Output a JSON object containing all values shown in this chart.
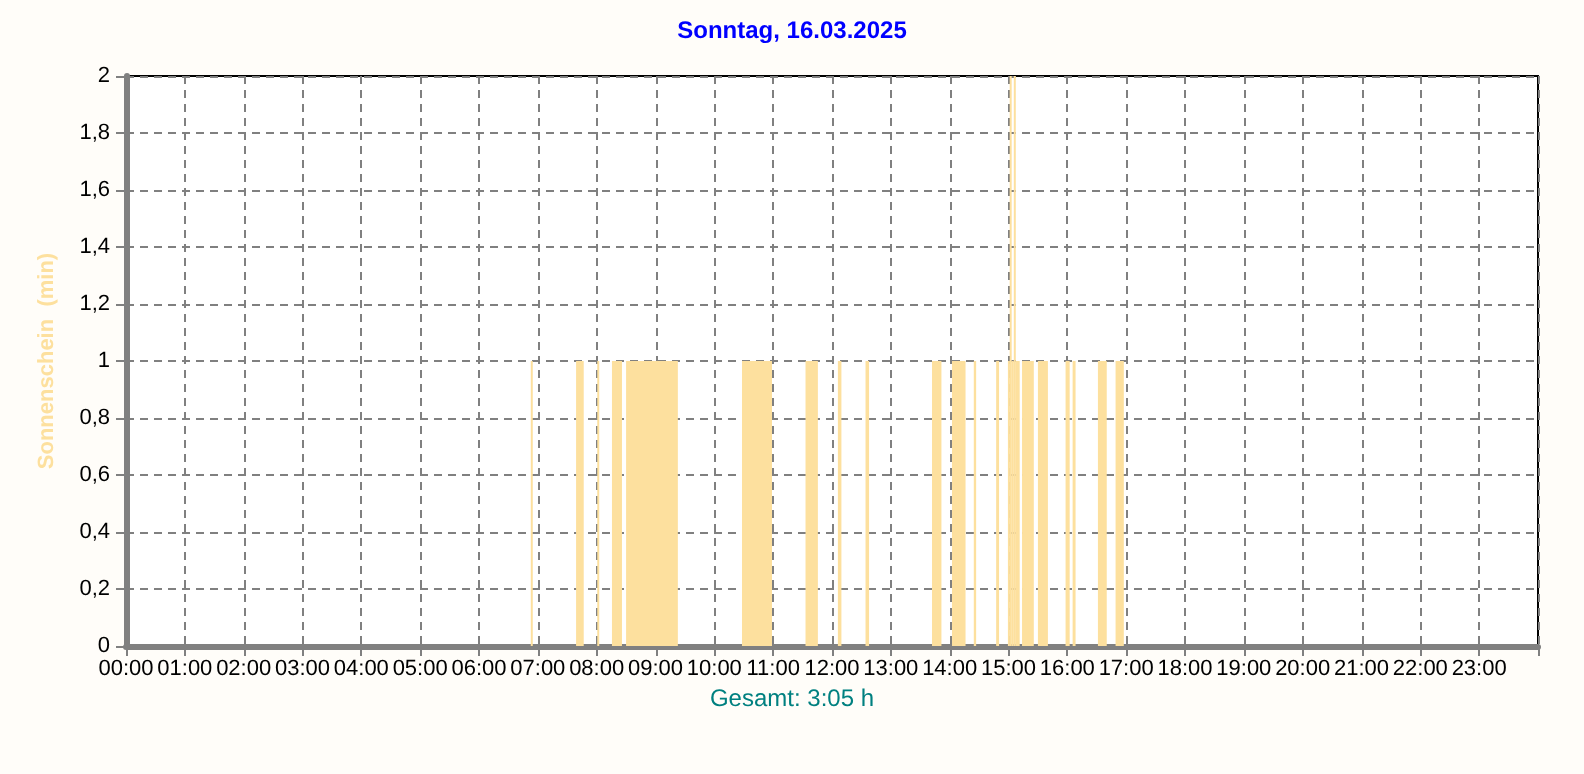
{
  "chart_data": {
    "type": "histogram",
    "title": "Sonntag, 16.03.2025",
    "ylabel": "Sonnenschein  (min)",
    "annotations": [
      "Gesamt: 3:05 h"
    ],
    "color": "#fde09e",
    "bins": [
      6.88,
      6.91,
      7.65,
      7.78,
      8.01,
      8.04,
      8.26,
      8.43,
      8.5,
      9.38,
      10.47,
      10.98,
      11.55,
      11.76,
      12.1,
      12.16,
      12.57,
      12.63,
      13.7,
      13.86,
      14.04,
      14.27,
      14.41,
      14.45,
      14.79,
      14.84,
      14.99,
      15.02,
      15.05,
      15.09,
      15.12,
      15.19,
      15.23,
      15.43,
      15.5,
      15.67,
      15.97,
      16.04,
      16.09,
      16.14,
      16.52,
      16.67,
      16.82,
      16.96
    ],
    "values": [
      1,
      0,
      1,
      0,
      1,
      0,
      1,
      0,
      1,
      0,
      1,
      0,
      1,
      0,
      1,
      0,
      1,
      0,
      1,
      0,
      1,
      0,
      1,
      0,
      1,
      0,
      1,
      2,
      1,
      2,
      1,
      0,
      1,
      0,
      1,
      0,
      1,
      0,
      1,
      0,
      1,
      0,
      1
    ],
    "xlim": [
      0,
      24
    ],
    "xticks": [
      {
        "value": 0,
        "label": "00:00"
      },
      {
        "value": 1,
        "label": "01:00"
      },
      {
        "value": 2,
        "label": "02:00"
      },
      {
        "value": 3,
        "label": "03:00"
      },
      {
        "value": 4,
        "label": "04:00"
      },
      {
        "value": 5,
        "label": "05:00"
      },
      {
        "value": 6,
        "label": "06:00"
      },
      {
        "value": 7,
        "label": "07:00"
      },
      {
        "value": 8,
        "label": "08:00"
      },
      {
        "value": 9,
        "label": "09:00"
      },
      {
        "value": 10,
        "label": "10:00"
      },
      {
        "value": 11,
        "label": "11:00"
      },
      {
        "value": 12,
        "label": "12:00"
      },
      {
        "value": 13,
        "label": "13:00"
      },
      {
        "value": 14,
        "label": "14:00"
      },
      {
        "value": 15,
        "label": "15:00"
      },
      {
        "value": 16,
        "label": "16:00"
      },
      {
        "value": 17,
        "label": "17:00"
      },
      {
        "value": 18,
        "label": "18:00"
      },
      {
        "value": 19,
        "label": "19:00"
      },
      {
        "value": 20,
        "label": "20:00"
      },
      {
        "value": 21,
        "label": "21:00"
      },
      {
        "value": 22,
        "label": "22:00"
      },
      {
        "value": 23,
        "label": "23:00"
      },
      {
        "value": 24,
        "label": null
      }
    ],
    "ylim": [
      0,
      2
    ],
    "yticks": [
      0,
      {
        "value": 0.2,
        "label": "0,2"
      },
      {
        "value": 0.4,
        "label": "0,4"
      },
      {
        "value": 0.6,
        "label": "0,6"
      },
      {
        "value": 0.8,
        "label": "0,8"
      },
      1,
      {
        "value": 1.2,
        "label": "1,2"
      },
      {
        "value": 1.4,
        "label": "1,4"
      },
      {
        "value": 1.6,
        "label": "1,6"
      },
      {
        "value": 1.8,
        "label": "1,8"
      },
      2
    ],
    "grid": true
  }
}
